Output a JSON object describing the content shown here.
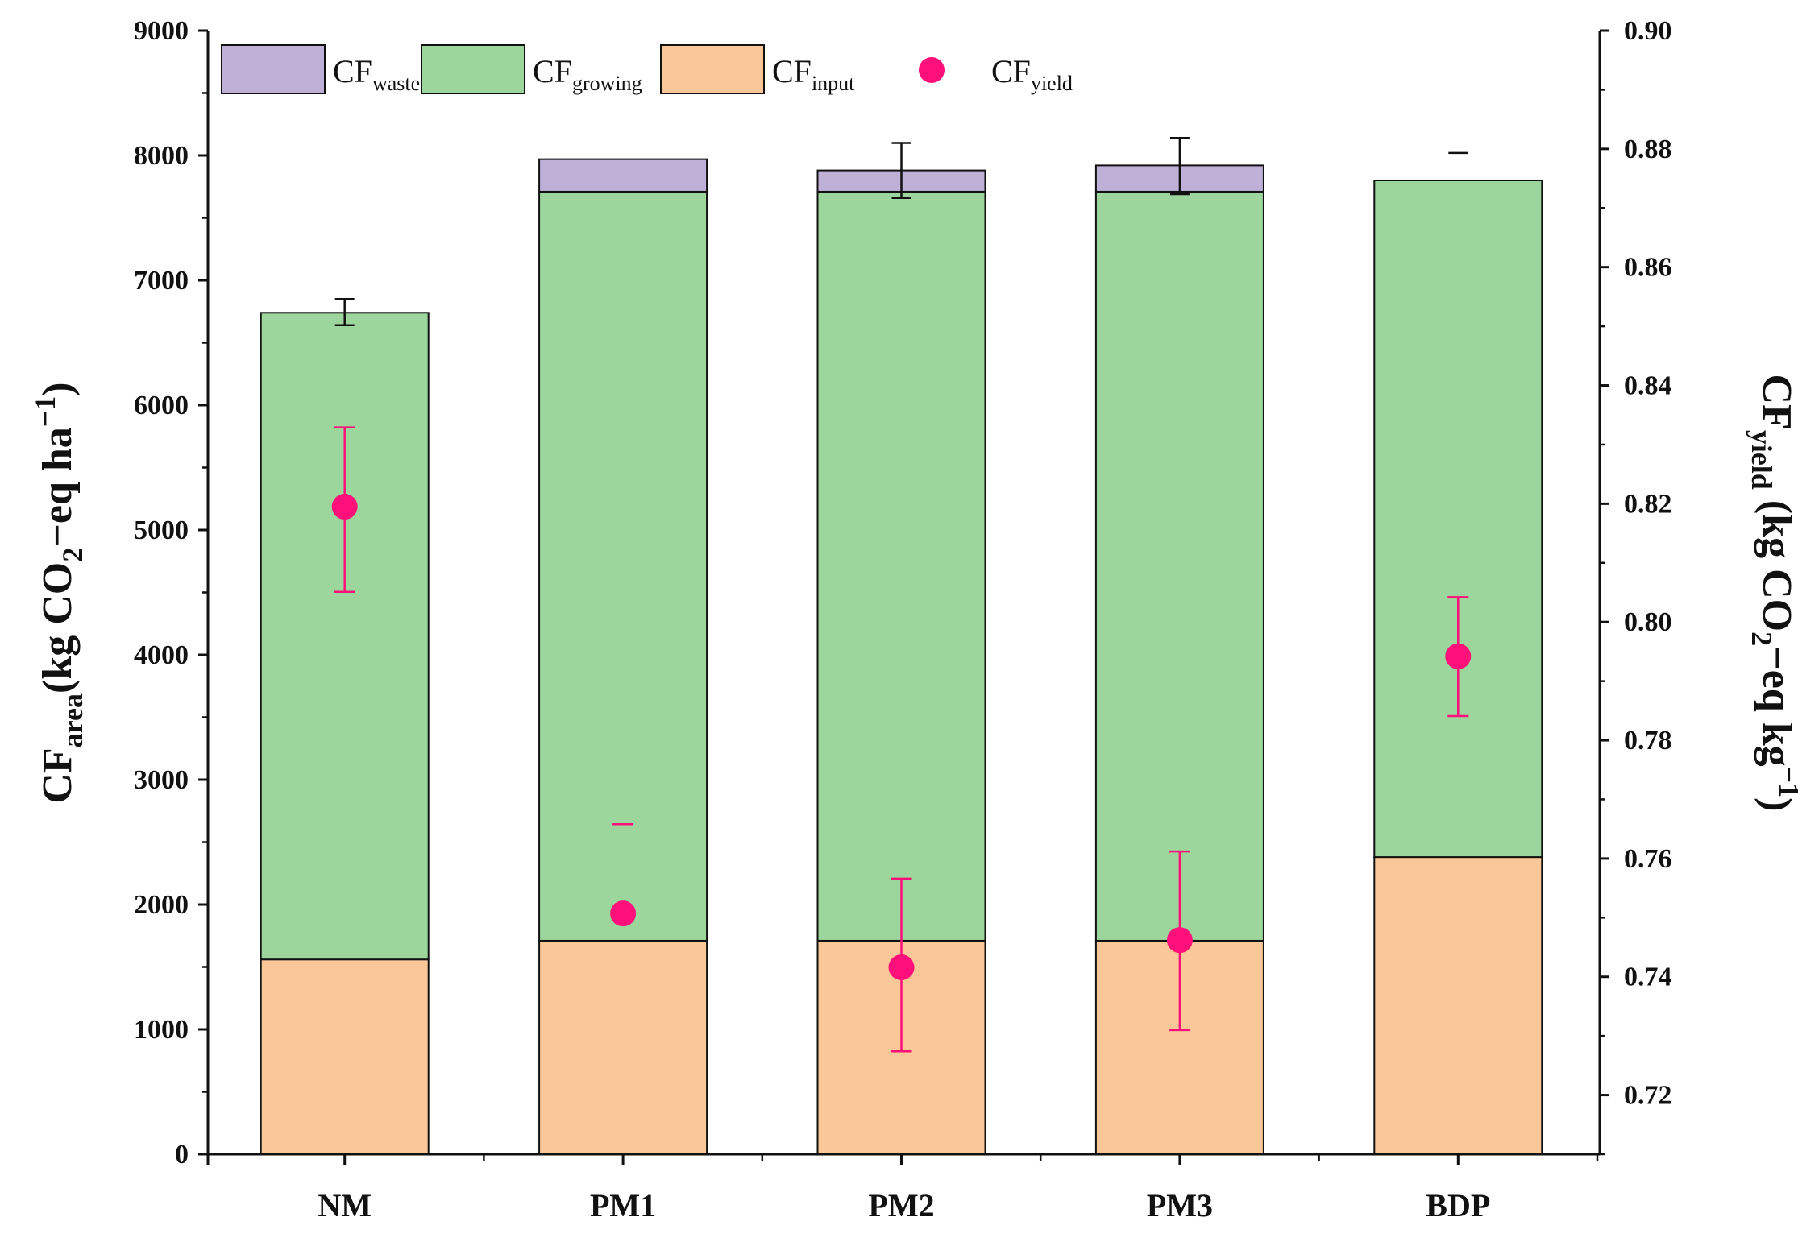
{
  "chart_data": {
    "type": "bar",
    "stacked": true,
    "categories": [
      "NM",
      "PM1",
      "PM2",
      "PM3",
      "BDP"
    ],
    "series": [
      {
        "name": "CF_input",
        "label_main": "CF",
        "label_sub": "input",
        "color": "#FAC898",
        "values": [
          1560,
          1710,
          1710,
          1710,
          2380
        ]
      },
      {
        "name": "CF_growing",
        "label_main": "CF",
        "label_sub": "growing",
        "color": "#9DD69D",
        "values": [
          5180,
          6000,
          6000,
          6000,
          5420
        ]
      },
      {
        "name": "CF_waste",
        "label_main": "CF",
        "label_sub": "waste",
        "color": "#BFB0D8",
        "values": [
          0,
          260,
          170,
          210,
          0
        ]
      }
    ],
    "area_error": [
      {
        "low": 6640,
        "high": 6850
      },
      {
        "low": null,
        "high": null
      },
      {
        "low": 7660,
        "high": 8100
      },
      {
        "low": 7690,
        "high": 8140
      },
      {
        "low": null,
        "high": 8020
      }
    ],
    "yield_series": {
      "name": "CF_yield",
      "label_main": "CF",
      "label_sub": "yield",
      "color": "#FF0F7A",
      "values": [
        0.8195,
        0.7507,
        0.7416,
        0.7462,
        0.7942
      ],
      "err_low": [
        0.8051,
        null,
        0.7274,
        0.731,
        0.7841
      ],
      "err_high": [
        0.8329,
        0.7658,
        0.7566,
        0.7612,
        0.8042
      ]
    },
    "ylabel_left": {
      "main": "CF",
      "sub": "area",
      "rest": "(kg CO",
      "sub2": "2",
      "tail": "−eq ha",
      "sup": "−1",
      "close": ")"
    },
    "ylabel_right": {
      "main": "CF",
      "sub": "yield",
      "rest": " (kg CO",
      "sub2": "2",
      "tail": "−eq kg",
      "sup": "−1",
      "close": ")"
    },
    "ylim_left": [
      0,
      9000
    ],
    "yticks_left": [
      "0",
      "1000",
      "2000",
      "3000",
      "4000",
      "5000",
      "6000",
      "7000",
      "8000",
      "9000"
    ],
    "ylim_right": [
      0.71,
      0.9
    ],
    "yticks_right": [
      "0.72",
      "0.74",
      "0.76",
      "0.78",
      "0.80",
      "0.82",
      "0.84",
      "0.86",
      "0.88",
      "0.90"
    ],
    "legend_position": "top-left"
  }
}
